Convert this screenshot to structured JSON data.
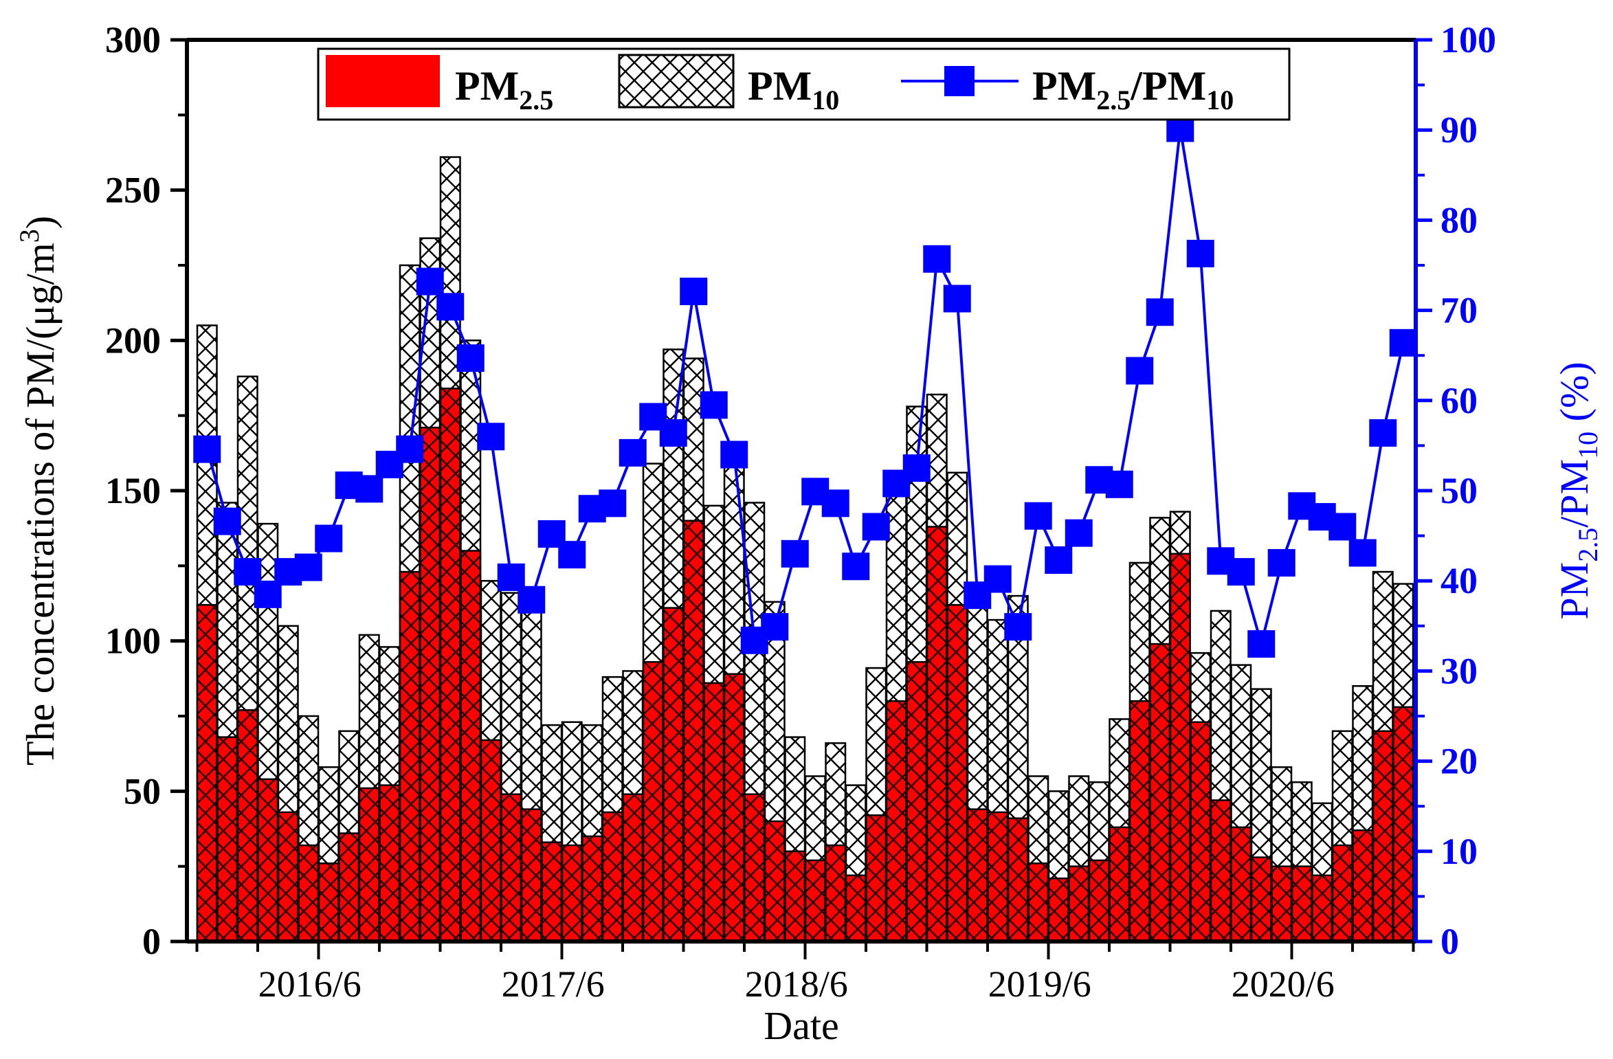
{
  "chart_data": {
    "type": "bar",
    "title": "",
    "xlabel": "Date",
    "ylabel": "The concentrations of PM/(μg/m³)",
    "ylabel_main": "The concentrations of PM/(μg/m",
    "ylabel_sup": "3",
    "ylabel_tail": ")",
    "ylabel_right": "PM2.5/PM10 (%)",
    "ylabel_right_parts": {
      "p1": "PM",
      "s1": "2.5",
      "p2": "/PM",
      "s2": "10",
      "p3": " (%)"
    },
    "ylim": [
      0,
      300
    ],
    "ylim_right": [
      0,
      100
    ],
    "yticks_left": [
      "0",
      "50",
      "100",
      "150",
      "200",
      "250",
      "300"
    ],
    "yticks_right": [
      "0",
      "10",
      "20",
      "30",
      "40",
      "50",
      "60",
      "70",
      "80",
      "90",
      "100"
    ],
    "xtick_labels": [
      "2016/6",
      "2017/6",
      "2018/6",
      "2019/6",
      "2020/6"
    ],
    "xtick_label_index": [
      5.5,
      17.5,
      29.5,
      41.5,
      53.5
    ],
    "n_months": 60,
    "legend": {
      "placement": "top-center",
      "entries": [
        {
          "name": "PM2.5",
          "base": "PM",
          "sub": "2.5"
        },
        {
          "name": "PM10",
          "base": "PM",
          "sub": "10"
        },
        {
          "name": "PM2.5/PM10",
          "base1": "PM",
          "sub1": "2.5",
          "mid": "/PM",
          "sub2": "10"
        }
      ]
    },
    "colors": {
      "pm25": "#ff0000",
      "pm10": "#ffffff",
      "ratio": "#0000ff",
      "axis": "#000000"
    },
    "series": [
      {
        "name": "PM2.5",
        "axis": "left",
        "values": [
          112,
          68,
          77,
          54,
          43,
          32,
          26,
          36,
          51,
          52,
          123,
          171,
          184,
          130,
          67,
          49,
          44,
          33,
          32,
          35,
          43,
          49,
          93,
          111,
          140,
          86,
          89,
          49,
          40,
          30,
          27,
          32,
          22,
          42,
          80,
          93,
          138,
          112,
          44,
          43,
          41,
          26,
          21,
          25,
          27,
          38,
          80,
          99,
          129,
          73,
          47,
          38,
          28,
          25,
          25,
          22,
          32,
          37,
          70,
          78
        ]
      },
      {
        "name": "PM10",
        "axis": "left",
        "values": [
          205,
          146,
          188,
          139,
          105,
          75,
          58,
          70,
          102,
          98,
          225,
          234,
          261,
          200,
          120,
          116,
          111,
          72,
          73,
          72,
          88,
          90,
          159,
          197,
          194,
          145,
          163,
          146,
          113,
          68,
          55,
          66,
          52,
          91,
          153,
          178,
          182,
          156,
          112,
          107,
          115,
          55,
          50,
          55,
          53,
          74,
          126,
          141,
          143,
          96,
          110,
          92,
          84,
          58,
          53,
          46,
          70,
          85,
          123,
          119
        ]
      },
      {
        "name": "PM2.5/PM10",
        "axis": "right",
        "values": [
          54.6,
          46.6,
          41.0,
          38.5,
          41.0,
          41.5,
          44.7,
          50.6,
          50.2,
          52.9,
          54.6,
          73.2,
          70.4,
          64.7,
          56.0,
          40.4,
          37.9,
          45.2,
          42.9,
          48.0,
          48.6,
          54.2,
          58.2,
          56.4,
          72.1,
          59.5,
          54.0,
          33.4,
          34.9,
          43.0,
          49.9,
          48.6,
          41.6,
          46.0,
          50.8,
          52.5,
          75.7,
          71.3,
          38.4,
          40.2,
          34.9,
          47.2,
          42.3,
          45.3,
          51.2,
          50.7,
          63.3,
          69.8,
          90.2,
          76.3,
          42.2,
          41.0,
          33.0,
          42.0,
          48.3,
          47.1,
          46.0,
          43.1,
          56.4,
          66.4
        ]
      }
    ]
  }
}
